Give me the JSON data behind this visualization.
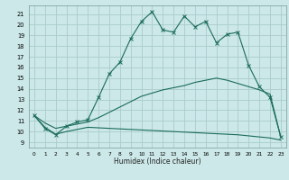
{
  "title": "",
  "xlabel": "Humidex (Indice chaleur)",
  "bg_color": "#cce8e8",
  "grid_color": "#aacccc",
  "line_color": "#1a6b5a",
  "xlim": [
    -0.5,
    23.5
  ],
  "ylim": [
    8.5,
    21.8
  ],
  "xticks": [
    0,
    1,
    2,
    3,
    4,
    5,
    6,
    7,
    8,
    9,
    10,
    11,
    12,
    13,
    14,
    15,
    16,
    17,
    18,
    19,
    20,
    21,
    22,
    23
  ],
  "yticks": [
    9,
    10,
    11,
    12,
    13,
    14,
    15,
    16,
    17,
    18,
    19,
    20,
    21
  ],
  "main_x": [
    0,
    1,
    2,
    3,
    4,
    5,
    6,
    7,
    8,
    9,
    10,
    11,
    12,
    13,
    14,
    15,
    16,
    17,
    18,
    19,
    20,
    21,
    22,
    23
  ],
  "main_y": [
    11.5,
    10.3,
    9.7,
    10.5,
    10.9,
    11.1,
    13.2,
    15.4,
    16.5,
    18.7,
    20.3,
    21.2,
    19.5,
    19.3,
    20.8,
    19.8,
    20.3,
    18.3,
    19.1,
    19.3,
    16.2,
    14.2,
    13.2,
    9.5
  ],
  "upper_x": [
    0,
    1,
    2,
    3,
    4,
    5,
    6,
    7,
    8,
    9,
    10,
    11,
    12,
    13,
    14,
    15,
    16,
    17,
    18,
    19,
    20,
    21,
    22,
    23
  ],
  "upper_y": [
    11.5,
    10.8,
    10.3,
    10.5,
    10.7,
    10.9,
    11.3,
    11.8,
    12.3,
    12.8,
    13.3,
    13.6,
    13.9,
    14.1,
    14.3,
    14.6,
    14.8,
    15.0,
    14.8,
    14.5,
    14.2,
    13.9,
    13.5,
    9.5
  ],
  "lower_x": [
    0,
    1,
    2,
    3,
    4,
    5,
    6,
    7,
    8,
    9,
    10,
    11,
    12,
    13,
    14,
    15,
    16,
    17,
    18,
    19,
    20,
    21,
    22,
    23
  ],
  "lower_y": [
    11.5,
    10.4,
    9.75,
    10.0,
    10.2,
    10.4,
    10.35,
    10.3,
    10.25,
    10.2,
    10.15,
    10.1,
    10.05,
    10.0,
    9.95,
    9.9,
    9.85,
    9.8,
    9.75,
    9.7,
    9.6,
    9.5,
    9.4,
    9.2
  ]
}
